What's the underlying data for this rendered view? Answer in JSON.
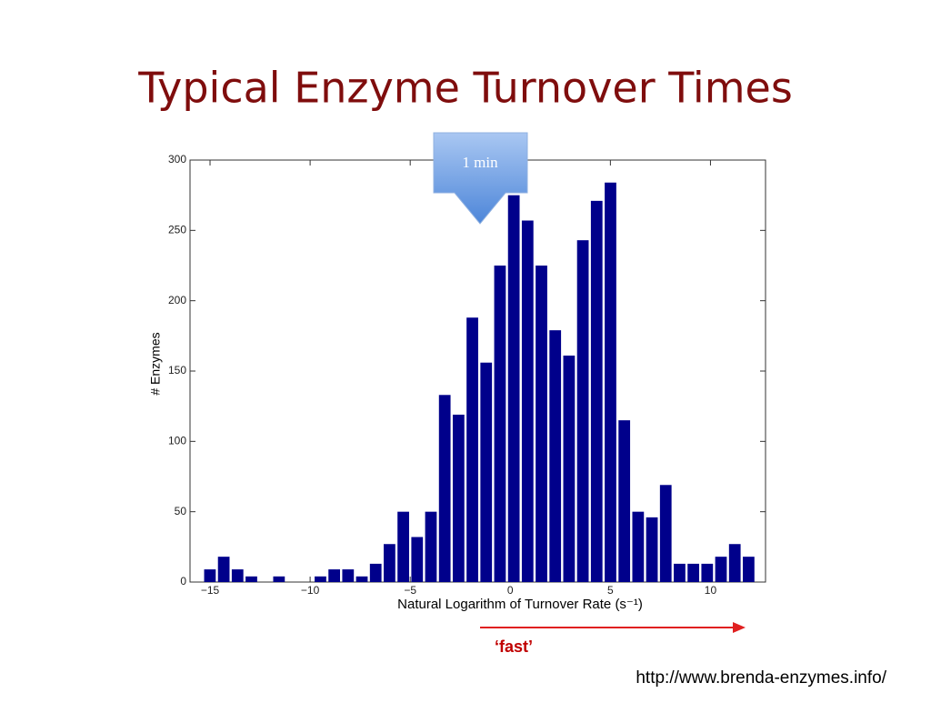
{
  "chart_data": {
    "type": "histogram",
    "title": "Typical Enzyme Turnover Times",
    "x_label": "Natural Logarithm of Turnover Rate (s⁻¹)",
    "y_label": "# Enzymes",
    "annotations": [
      "1 min",
      "‘fast’",
      "http://www.brenda-enzymes.info/"
    ],
    "color": "#00008b",
    "bins": [
      -15.35,
      -14.66,
      -13.97,
      -13.28,
      -12.59,
      -11.9,
      -11.21,
      -10.52,
      -9.83,
      -9.14,
      -8.45,
      -7.76,
      -7.07,
      -6.38,
      -5.69,
      -5.0,
      -4.31,
      -3.62,
      -2.93,
      -2.24,
      -1.55,
      -0.86,
      -0.17,
      0.52,
      1.21,
      1.9,
      2.59,
      3.28,
      3.97,
      4.66,
      5.35,
      6.04,
      6.73,
      7.42,
      8.11,
      8.8,
      9.49,
      10.18,
      10.87,
      11.56,
      12.25
    ],
    "values": [
      9,
      18,
      9,
      4,
      0,
      4,
      0,
      0,
      4,
      9,
      9,
      4,
      13,
      27,
      50,
      32,
      50,
      133,
      119,
      188,
      156,
      225,
      275,
      257,
      225,
      179,
      161,
      243,
      271,
      284,
      115,
      50,
      46,
      69,
      13,
      13,
      13,
      18,
      27,
      18
    ],
    "xlim": [
      -16,
      12.75
    ],
    "ylim": [
      0,
      300
    ],
    "xticks": [
      {
        "value": -15,
        "label": "−15"
      },
      {
        "value": -10,
        "label": "−10"
      },
      {
        "value": -5,
        "label": "−5"
      },
      0,
      5,
      10
    ],
    "yticks": [
      0,
      50,
      100,
      150,
      200,
      250,
      300
    ]
  }
}
